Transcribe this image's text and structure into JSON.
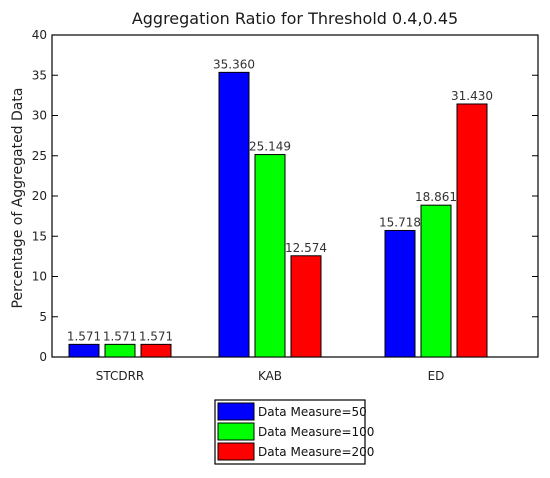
{
  "chart_data": {
    "type": "bar",
    "title": "Aggregation Ratio for Threshold 0.4,0.45",
    "xlabel": "",
    "ylabel": "Percentage of Aggregated Data",
    "ylim": [
      0,
      40
    ],
    "yticks": [
      0,
      5,
      10,
      15,
      20,
      25,
      30,
      35,
      40
    ],
    "categories": [
      "STCDRR",
      "KAB",
      "ED"
    ],
    "series": [
      {
        "name": "Data Measure=50",
        "color": "#0000ff",
        "values": [
          1.571,
          35.36,
          15.718
        ],
        "labels": [
          "1.571",
          "35.360",
          "15.718"
        ]
      },
      {
        "name": "Data Measure=100",
        "color": "#00ff00",
        "values": [
          1.571,
          25.149,
          18.861
        ],
        "labels": [
          "1.571",
          "25.149",
          "18.861"
        ]
      },
      {
        "name": "Data Measure=200",
        "color": "#ff0000",
        "values": [
          1.571,
          12.574,
          31.43
        ],
        "labels": [
          "1.571",
          "12.574",
          "31.430"
        ]
      }
    ],
    "grid": false,
    "legend_position": "bottom-center"
  }
}
